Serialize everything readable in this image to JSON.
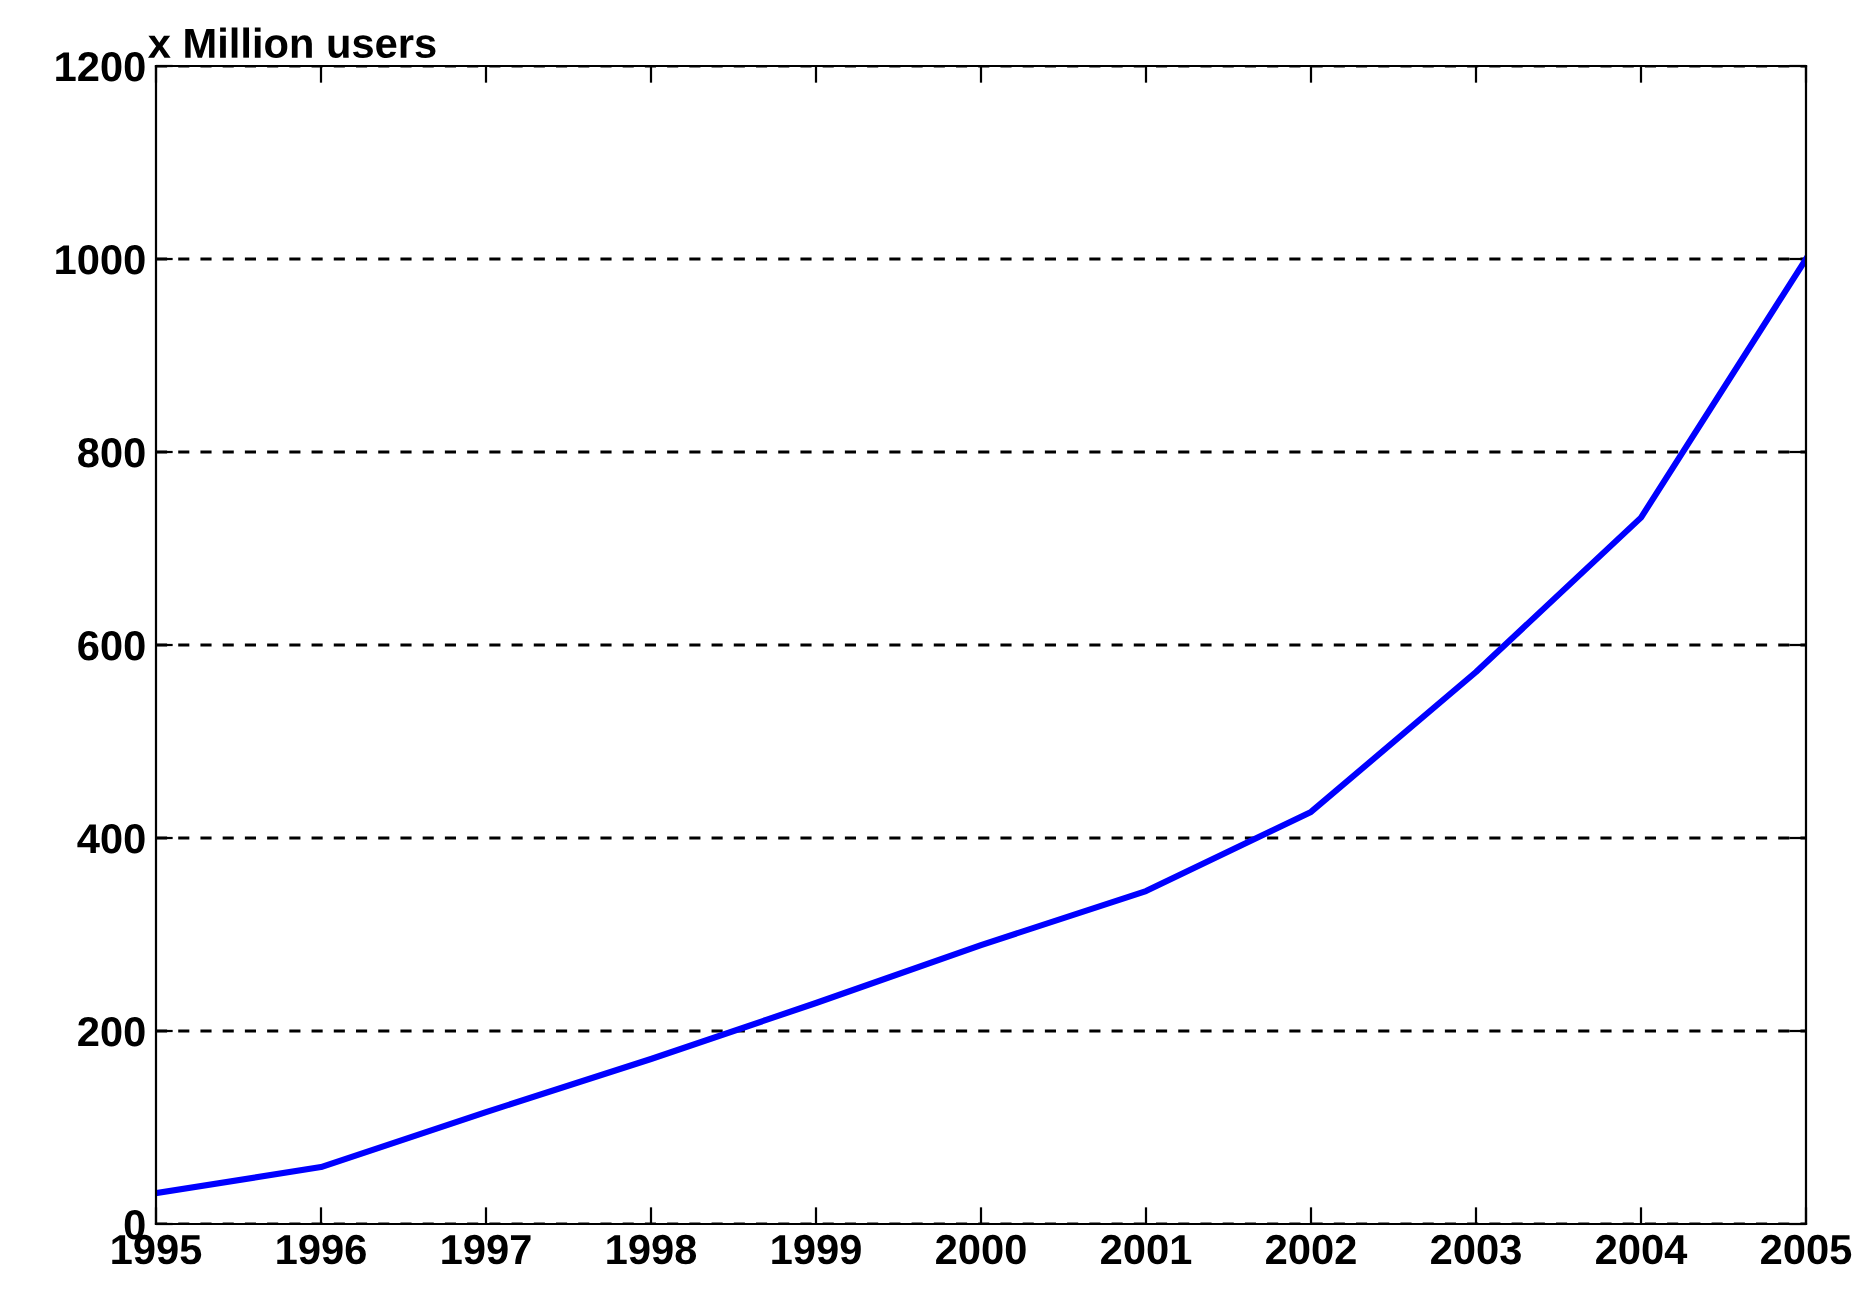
{
  "chart_data": {
    "type": "line",
    "title": "x Million users",
    "x": [
      1995,
      1996,
      1997,
      1998,
      1999,
      2000,
      2001,
      2002,
      2003,
      2004,
      2005
    ],
    "series": [
      {
        "color": "#0000ff",
        "values": [
          32,
          59,
          116,
          171,
          229,
          289,
          345,
          427,
          572,
          732,
          1000
        ]
      }
    ],
    "xlim": [
      1995,
      2005
    ],
    "xticks": [
      1995,
      1996,
      1997,
      1998,
      1999,
      2000,
      2001,
      2002,
      2003,
      2004,
      2005
    ],
    "ylim": [
      0,
      1200
    ],
    "yticks": [
      0,
      200,
      400,
      600,
      800,
      1000,
      1200
    ],
    "grid": "y",
    "line_style": "solid",
    "marker": "none"
  }
}
